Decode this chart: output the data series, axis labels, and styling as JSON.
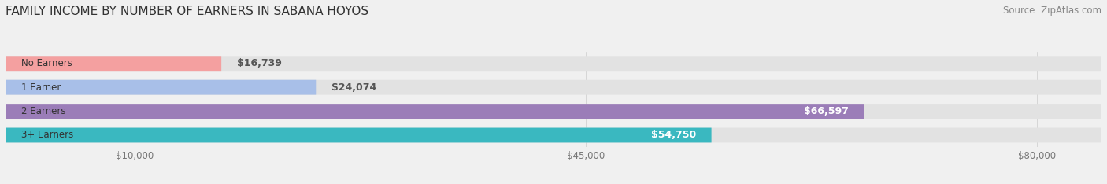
{
  "title": "FAMILY INCOME BY NUMBER OF EARNERS IN SABANA HOYOS",
  "source": "Source: ZipAtlas.com",
  "categories": [
    "No Earners",
    "1 Earner",
    "2 Earners",
    "3+ Earners"
  ],
  "values": [
    16739,
    24074,
    66597,
    54750
  ],
  "bar_colors": [
    "#f4a0a0",
    "#a8bfe8",
    "#9b7db8",
    "#3ab8c0"
  ],
  "label_colors": [
    "#666666",
    "#666666",
    "#ffffff",
    "#ffffff"
  ],
  "x_ticks": [
    10000,
    45000,
    80000
  ],
  "x_tick_labels": [
    "$10,000",
    "$45,000",
    "$80,000"
  ],
  "xlim_max": 85000,
  "background_color": "#f0f0f0",
  "bar_background_color": "#e2e2e2",
  "title_fontsize": 11,
  "source_fontsize": 8.5,
  "label_fontsize": 9,
  "category_fontsize": 8.5,
  "tick_fontsize": 8.5,
  "bar_height": 0.62
}
